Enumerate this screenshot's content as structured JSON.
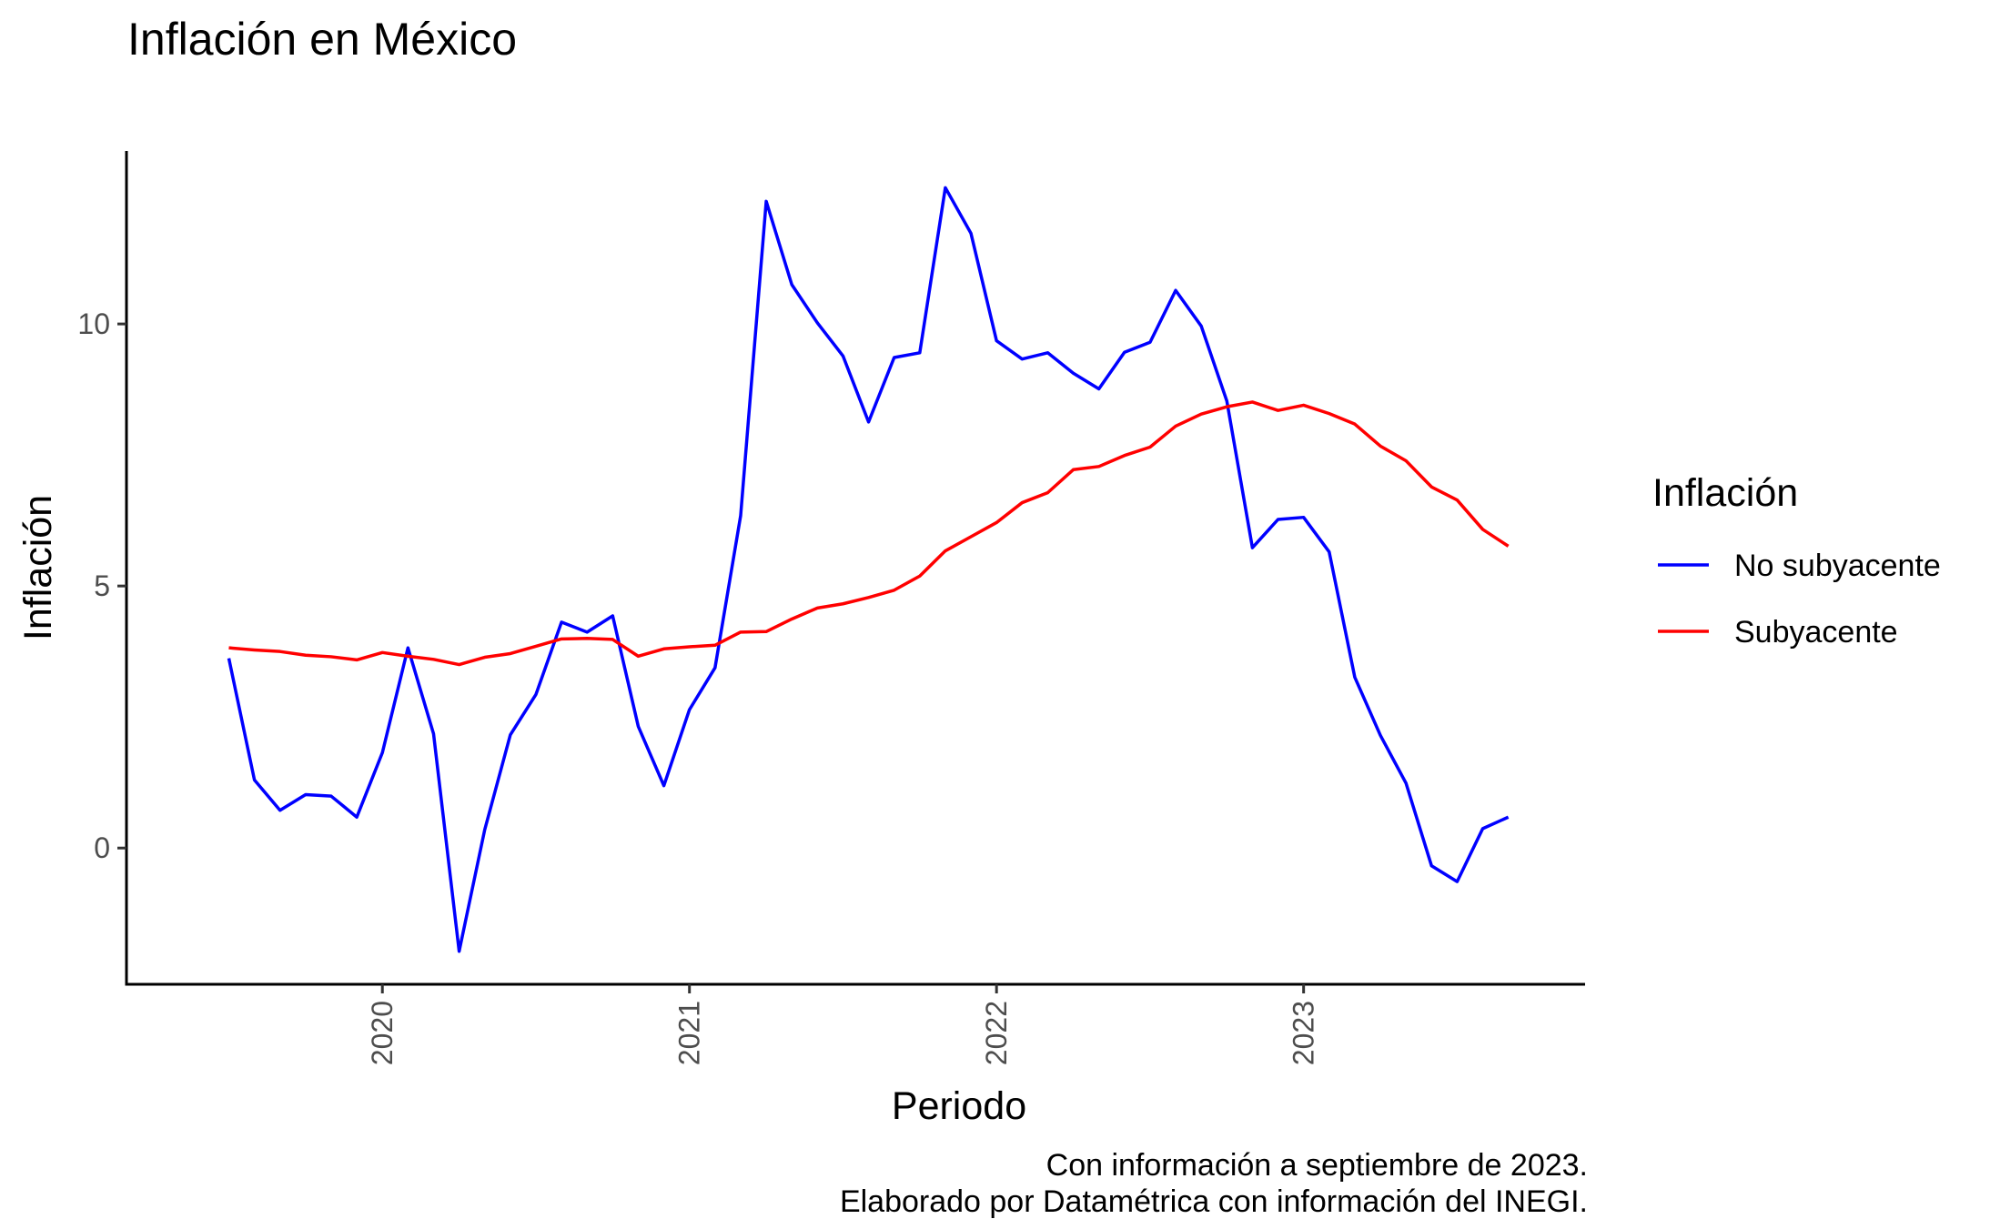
{
  "chart_data": {
    "type": "line",
    "title": "Inflación en México",
    "xlabel": "Periodo",
    "ylabel": "Inflación",
    "x_start": "2019-07",
    "x_ticks": [
      {
        "label": "2020",
        "date": "2020-01"
      },
      {
        "label": "2021",
        "date": "2021-01"
      },
      {
        "label": "2022",
        "date": "2022-01"
      },
      {
        "label": "2023",
        "date": "2023-01"
      }
    ],
    "y_ticks": [
      0,
      5,
      10
    ],
    "xlim": [
      "2019-03",
      "2023-12"
    ],
    "ylim": [
      -2.6,
      13.3
    ],
    "grid": false,
    "legend": {
      "title": "Inflación",
      "position": "right"
    },
    "series": [
      {
        "name": "No subyacente",
        "color": "#0000ff",
        "values": [
          3.62,
          1.3,
          0.72,
          1.02,
          0.99,
          0.59,
          1.82,
          3.82,
          2.18,
          -1.97,
          0.35,
          2.16,
          2.93,
          4.31,
          4.12,
          4.43,
          2.32,
          1.19,
          2.64,
          3.44,
          6.34,
          12.34,
          10.75,
          10.02,
          9.39,
          8.13,
          9.36,
          9.45,
          12.6,
          11.73,
          9.68,
          9.33,
          9.45,
          9.06,
          8.76,
          9.46,
          9.65,
          10.64,
          9.96,
          8.53,
          5.73,
          6.27,
          6.31,
          5.65,
          3.26,
          2.15,
          1.24,
          -0.34,
          -0.64,
          0.37,
          0.59
        ]
      },
      {
        "name": "Subyacente",
        "color": "#ff0000",
        "values": [
          3.82,
          3.78,
          3.75,
          3.68,
          3.65,
          3.59,
          3.73,
          3.66,
          3.6,
          3.5,
          3.64,
          3.71,
          3.85,
          3.99,
          4.0,
          3.98,
          3.66,
          3.8,
          3.84,
          3.87,
          4.12,
          4.13,
          4.37,
          4.58,
          4.66,
          4.78,
          4.92,
          5.19,
          5.67,
          5.94,
          6.21,
          6.59,
          6.78,
          7.22,
          7.28,
          7.49,
          7.65,
          8.05,
          8.28,
          8.42,
          8.51,
          8.35,
          8.45,
          8.29,
          8.09,
          7.67,
          7.39,
          6.89,
          6.64,
          6.08,
          5.76
        ]
      }
    ]
  },
  "caption": {
    "line1": "Con información a septiembre de 2023.",
    "line2": "Elaborado por Datamétrica con información del INEGI."
  }
}
